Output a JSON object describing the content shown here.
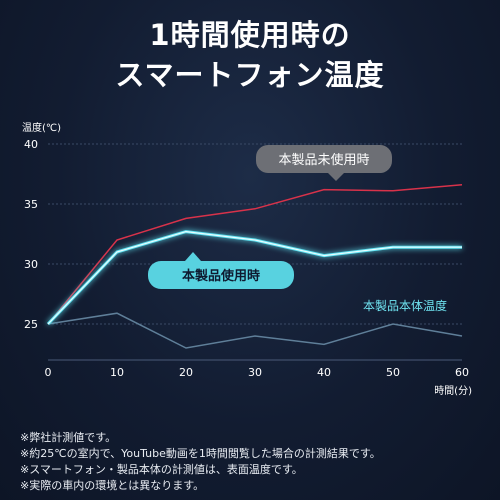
{
  "title_lines": [
    "1時間使用時の",
    "スマートフォン温度"
  ],
  "notes": [
    "※弊社計測値です。",
    "※約25℃の室内で、YouTube動画を1時間閲覧した場合の計測結果です。",
    "※スマートフォン・製品本体の計測値は、表面温度です。",
    "※実際の車内の環境とは異なります。"
  ],
  "chart_data": {
    "type": "line",
    "ylabel": "温度(℃)",
    "xlabel": "時間(分)",
    "x": [
      0,
      10,
      20,
      30,
      40,
      50,
      60
    ],
    "xlim": [
      0,
      60
    ],
    "ylim": [
      22,
      41
    ],
    "y_ticks": [
      25,
      30,
      35,
      40
    ],
    "grid": "horizontal",
    "series": [
      {
        "name": "本製品未使用時",
        "values": [
          25.0,
          32.0,
          33.8,
          34.6,
          36.2,
          36.1,
          36.6
        ],
        "color": "#d8324a",
        "label_style": "callout-gray"
      },
      {
        "name": "本製品使用時",
        "values": [
          25.0,
          31.0,
          32.7,
          32.0,
          30.7,
          31.4,
          31.4
        ],
        "color": "#5fe3f2",
        "label_style": "callout-cyan"
      },
      {
        "name": "本製品本体温度",
        "values": [
          25.0,
          25.9,
          23.0,
          24.0,
          23.3,
          25.0,
          24.0
        ],
        "color": "#5f7f99",
        "label_style": "plain-cyan"
      }
    ]
  }
}
